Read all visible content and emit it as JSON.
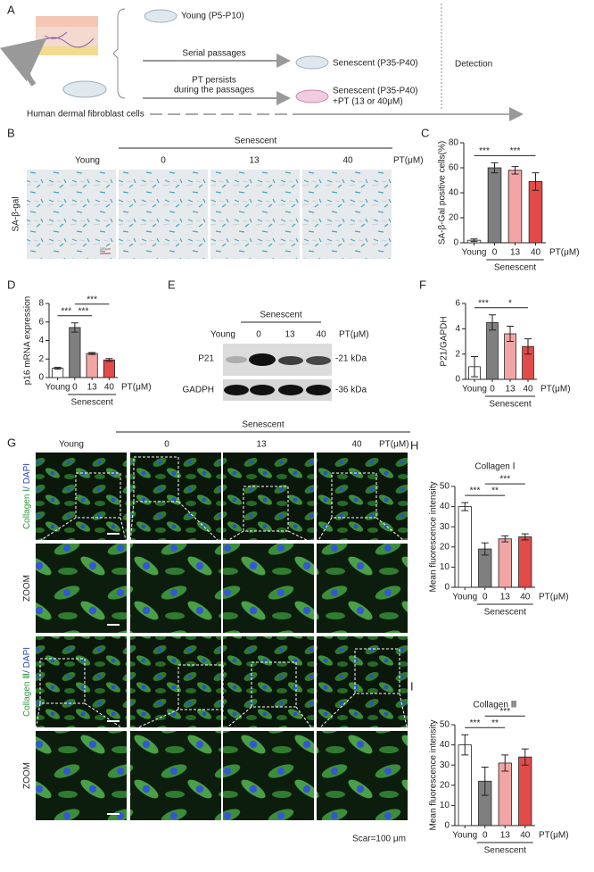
{
  "panel_labels": [
    "A",
    "B",
    "C",
    "D",
    "E",
    "F",
    "G",
    "H",
    "I"
  ],
  "schematic": {
    "young": "Young (P5-P10)",
    "serial": "Serial passages",
    "senescent": "Senescent (P35-P40)",
    "pt_persists": [
      "PT persists",
      "during the passages"
    ],
    "senescent_pt": [
      "Senescent (P35-P40)",
      "+PT (13 or 40μM)"
    ],
    "detection": "Detection",
    "cells": "Human dermal fibroblast cells"
  },
  "staining": {
    "group": "Senescent",
    "columns": [
      "Young",
      "0",
      "13",
      "40"
    ],
    "unit": "PT(μM)",
    "row_label": "SA-β-gal",
    "scale": "100μm"
  },
  "western": {
    "group": "Senescent",
    "columns": [
      "Young",
      "0",
      "13",
      "40"
    ],
    "unit": "PT(μM)",
    "rows": [
      {
        "protein": "P21",
        "size": "-21 kDa"
      },
      {
        "protein": "GADPH",
        "size": "-36 kDa"
      }
    ]
  },
  "immunofluorescence": {
    "group": "Senescent",
    "columns": [
      "Young",
      "0",
      "13",
      "40"
    ],
    "unit": "PT(μM)",
    "rows": [
      {
        "label": "Collagen Ⅰ",
        "counterstain": "/ DAPI"
      },
      {
        "label": "ZOOM"
      },
      {
        "label": "Collagen Ⅲ",
        "counterstain": "/ DAPI"
      },
      {
        "label": "ZOOM"
      }
    ],
    "scale": "Scar=100 μm"
  },
  "chart_data": [
    {
      "type": "bar",
      "y_label": "SA-β-Gal positive cells(%)",
      "categories": [
        "Young",
        "0",
        "13",
        "40"
      ],
      "values": [
        2,
        60,
        58,
        49
      ],
      "errors": [
        1,
        4,
        3,
        7
      ],
      "colors": [
        "#ffffff",
        "#7f7f7f",
        "#f2a5a5",
        "#e34a4a"
      ],
      "ylim": [
        0,
        80
      ],
      "yticks": [
        0,
        20,
        40,
        60,
        80
      ],
      "group": {
        "label": "Senescent",
        "from": 1,
        "to": 3
      },
      "unit_label": "PT(μM)",
      "significance": [
        {
          "label": "***",
          "from": 0,
          "to": 1
        },
        {
          "label": "***",
          "from": 1,
          "to": 3
        }
      ]
    },
    {
      "type": "bar",
      "y_label": "p16 mRNA expression",
      "categories": [
        "Young",
        "0",
        "13",
        "40"
      ],
      "values": [
        1,
        5.4,
        2.6,
        1.9
      ],
      "errors": [
        0.1,
        0.5,
        0.1,
        0.15
      ],
      "colors": [
        "#ffffff",
        "#7f7f7f",
        "#f2a5a5",
        "#e34a4a"
      ],
      "ylim": [
        0,
        8
      ],
      "yticks": [
        0,
        2,
        4,
        6,
        8
      ],
      "group": {
        "label": "Senescent",
        "from": 1,
        "to": 3
      },
      "unit_label": "PT(μM)",
      "significance": [
        {
          "label": "***",
          "from": 0,
          "to": 1
        },
        {
          "label": "***",
          "from": 1,
          "to": 2
        },
        {
          "label": "***",
          "from": 1,
          "to": 3
        }
      ]
    },
    {
      "type": "bar",
      "y_label": "P21/GAPDH",
      "categories": [
        "Young",
        "0",
        "13",
        "40"
      ],
      "values": [
        1,
        4.5,
        3.6,
        2.6
      ],
      "errors": [
        0.8,
        0.6,
        0.6,
        0.6
      ],
      "colors": [
        "#ffffff",
        "#7f7f7f",
        "#f2a5a5",
        "#e34a4a"
      ],
      "ylim": [
        0,
        6
      ],
      "yticks": [
        0,
        2,
        4,
        6
      ],
      "group": {
        "label": "Senescent",
        "from": 1,
        "to": 3
      },
      "unit_label": "PT(μM)",
      "significance": [
        {
          "label": "***",
          "from": 0,
          "to": 1
        },
        {
          "label": "*",
          "from": 1,
          "to": 3
        }
      ]
    },
    {
      "type": "bar",
      "title": "Collagen Ⅰ",
      "y_label": "Mean fluorescence intensity",
      "categories": [
        "Young",
        "0",
        "13",
        "40"
      ],
      "values": [
        40,
        19,
        24,
        25
      ],
      "errors": [
        2,
        3,
        1.5,
        1.5
      ],
      "colors": [
        "#ffffff",
        "#7f7f7f",
        "#f2a5a5",
        "#e34a4a"
      ],
      "ylim": [
        0,
        50
      ],
      "yticks": [
        0,
        10,
        20,
        30,
        40,
        50
      ],
      "group": {
        "label": "Senescent",
        "from": 1,
        "to": 3
      },
      "unit_label": "PT(μM)",
      "significance": [
        {
          "label": "***",
          "from": 0,
          "to": 1
        },
        {
          "label": "**",
          "from": 1,
          "to": 2
        },
        {
          "label": "***",
          "from": 1,
          "to": 3
        }
      ]
    },
    {
      "type": "bar",
      "title": "Collagen Ⅲ",
      "y_label": "Mean fluorescence intensity",
      "categories": [
        "Young",
        "0",
        "13",
        "40"
      ],
      "values": [
        40,
        22,
        31,
        34
      ],
      "errors": [
        5,
        7,
        4,
        4
      ],
      "colors": [
        "#ffffff",
        "#7f7f7f",
        "#f2a5a5",
        "#e34a4a"
      ],
      "ylim": [
        0,
        50
      ],
      "yticks": [
        0,
        10,
        20,
        30,
        40,
        50
      ],
      "group": {
        "label": "Senescent",
        "from": 1,
        "to": 3
      },
      "unit_label": "PT(μM)",
      "significance": [
        {
          "label": "***",
          "from": 0,
          "to": 1
        },
        {
          "label": "**",
          "from": 1,
          "to": 2
        },
        {
          "label": "***",
          "from": 1,
          "to": 3
        }
      ]
    }
  ]
}
